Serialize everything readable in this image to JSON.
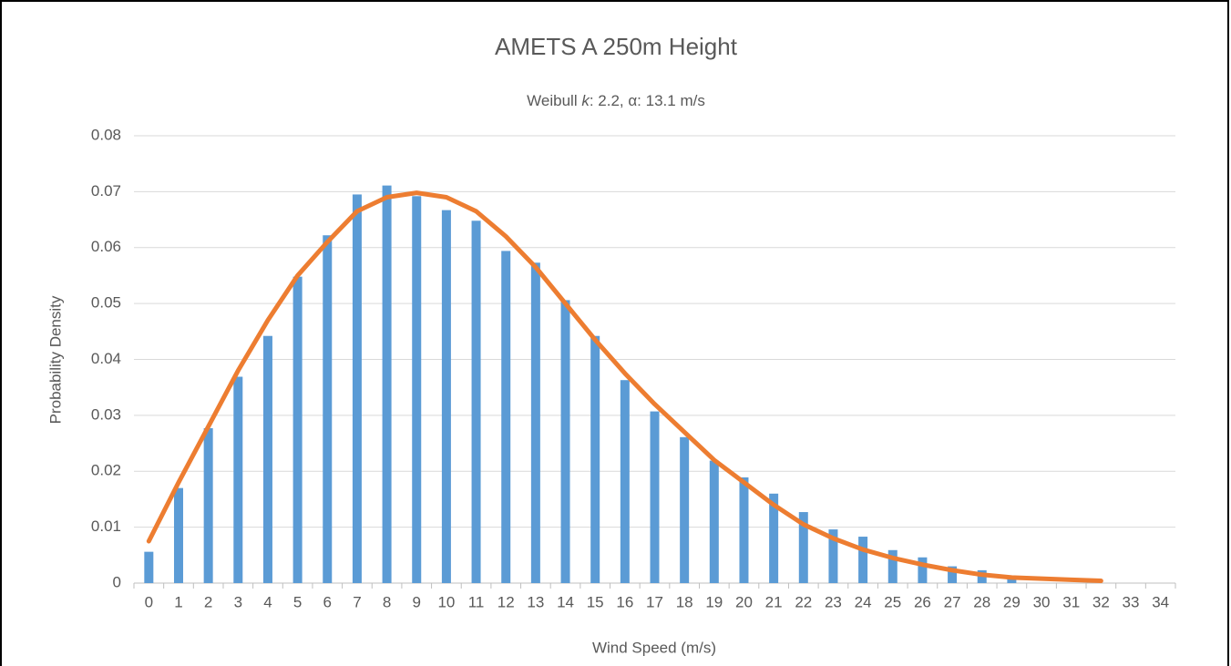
{
  "chart_data": {
    "type": "combo",
    "title": "AMETS A 250m Height",
    "subtitle_parts": [
      "Weibull ",
      "k",
      ": 2.2, α: 13.1 m/s"
    ],
    "x_label": "Wind Speed (m/s)",
    "y_label": "Probability Density",
    "categories": [
      "0",
      "1",
      "2",
      "3",
      "4",
      "5",
      "6",
      "7",
      "8",
      "9",
      "10",
      "11",
      "12",
      "13",
      "14",
      "15",
      "16",
      "17",
      "18",
      "19",
      "20",
      "21",
      "22",
      "23",
      "24",
      "25",
      "26",
      "27",
      "28",
      "29",
      "30",
      "31",
      "32",
      "33",
      "34"
    ],
    "series": [
      {
        "type": "bar",
        "color": "#5b9bd5",
        "values": [
          0.0056,
          0.017,
          0.0277,
          0.0369,
          0.0442,
          0.0548,
          0.0622,
          0.0695,
          0.0711,
          0.0692,
          0.0667,
          0.0648,
          0.0594,
          0.0573,
          0.0506,
          0.0442,
          0.0363,
          0.0307,
          0.0261,
          0.0219,
          0.0189,
          0.016,
          0.0127,
          0.0096,
          0.0083,
          0.0059,
          0.0046,
          0.003,
          0.0023,
          0.001,
          null,
          null,
          null,
          null,
          null
        ]
      },
      {
        "type": "line",
        "color": "#ed7d31",
        "values": [
          0.0075,
          0.018,
          0.028,
          0.038,
          0.047,
          0.055,
          0.061,
          0.0665,
          0.069,
          0.0698,
          0.069,
          0.0665,
          0.062,
          0.0565,
          0.05,
          0.0435,
          0.0375,
          0.032,
          0.027,
          0.022,
          0.018,
          0.014,
          0.0105,
          0.008,
          0.006,
          0.0045,
          0.0033,
          0.0023,
          0.0015,
          0.001,
          0.0008,
          0.0006,
          0.0004,
          null,
          null
        ]
      }
    ],
    "ylim": [
      0,
      0.08
    ],
    "yticks": [
      0,
      0.01,
      0.02,
      0.03,
      0.04,
      0.05,
      0.06,
      0.07,
      0.08
    ],
    "grid": true
  }
}
